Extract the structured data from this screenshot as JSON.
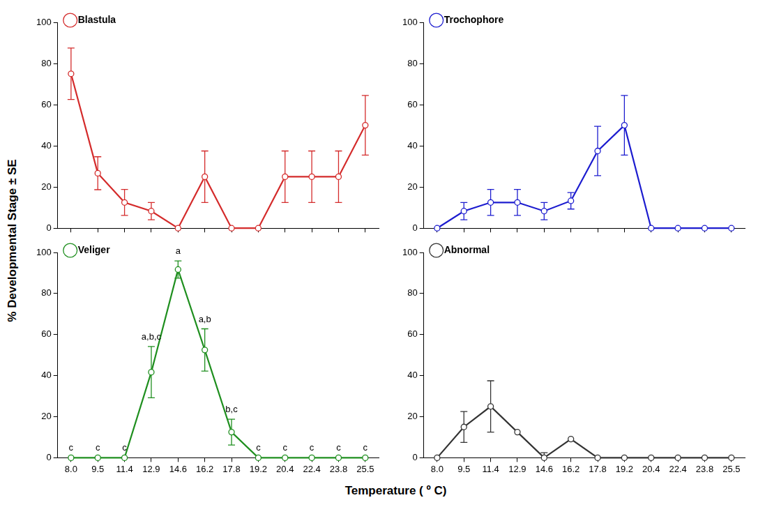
{
  "x_label": "Temperature ( º C)",
  "y_label": "% Developmental Stage ± SE",
  "chart_data": [
    {
      "type": "line",
      "categories": [
        "8.0",
        "9.5",
        "11.4",
        "12.9",
        "14.6",
        "16.2",
        "17.8",
        "19.2",
        "20.4",
        "22.4",
        "23.8",
        "25.5"
      ],
      "series": [
        {
          "name": "Blastula",
          "color": "#d42b2b",
          "marker": "circle",
          "values": [
            75,
            26.7,
            12.5,
            8.3,
            0,
            25,
            0,
            0,
            25,
            25,
            25,
            50
          ],
          "errors": [
            12.5,
            8,
            6.3,
            4.2,
            0,
            12.5,
            0,
            0,
            12.5,
            12.5,
            12.5,
            14.5
          ]
        }
      ],
      "ylim": [
        0,
        100
      ],
      "yticks": [
        0,
        20,
        40,
        60,
        80,
        100
      ],
      "grid": false,
      "legend": "upper left",
      "tick_labels": "y"
    },
    {
      "type": "line",
      "categories": [
        "8.0",
        "9.5",
        "11.4",
        "12.9",
        "14.6",
        "16.2",
        "17.8",
        "19.2",
        "20.4",
        "22.4",
        "23.8",
        "25.5"
      ],
      "series": [
        {
          "name": "Trochophore",
          "color": "#1c1ccf",
          "marker": "circle",
          "values": [
            0,
            8.3,
            12.5,
            12.5,
            8.3,
            13.3,
            37.5,
            50,
            0,
            0,
            0,
            0
          ],
          "errors": [
            0,
            4.2,
            6.3,
            6.3,
            4.2,
            4,
            12,
            14.5,
            0,
            0,
            0,
            0
          ]
        }
      ],
      "ylim": [
        0,
        100
      ],
      "yticks": [
        0,
        20,
        40,
        60,
        80,
        100
      ],
      "grid": false,
      "legend": "upper left",
      "tick_labels": "y"
    },
    {
      "type": "line",
      "categories": [
        "8.0",
        "9.5",
        "11.4",
        "12.9",
        "14.6",
        "16.2",
        "17.8",
        "19.2",
        "20.4",
        "22.4",
        "23.8",
        "25.5"
      ],
      "series": [
        {
          "name": "Veliger",
          "color": "#1f8f1f",
          "marker": "circle",
          "values": [
            0,
            0,
            0,
            41.7,
            91.7,
            52.5,
            12.5,
            0,
            0,
            0,
            0,
            0
          ],
          "errors": [
            0,
            0,
            0,
            12.5,
            4.2,
            10.3,
            6.3,
            0,
            0,
            0,
            0,
            0
          ],
          "annotations": [
            "c",
            "c",
            "c",
            "a,b,c",
            "a",
            "a,b",
            "b,c",
            "c",
            "c",
            "c",
            "c",
            "c"
          ]
        }
      ],
      "ylim": [
        0,
        100
      ],
      "yticks": [
        0,
        20,
        40,
        60,
        80,
        100
      ],
      "grid": false,
      "legend": "upper left",
      "tick_labels": true
    },
    {
      "type": "line",
      "categories": [
        "8.0",
        "9.5",
        "11.4",
        "12.9",
        "14.6",
        "16.2",
        "17.8",
        "19.2",
        "20.4",
        "22.4",
        "23.8",
        "25.5"
      ],
      "series": [
        {
          "name": "Abnormal",
          "color": "#333333",
          "marker": "circle",
          "values": [
            0,
            15,
            25,
            12.5,
            0,
            9.1,
            0,
            0,
            0,
            0,
            0,
            0
          ],
          "errors": [
            0,
            7.5,
            12.5,
            0,
            2.5,
            0,
            0,
            0,
            0,
            0,
            0,
            0
          ]
        }
      ],
      "ylim": [
        0,
        100
      ],
      "yticks": [
        0,
        20,
        40,
        60,
        80,
        100
      ],
      "grid": false,
      "legend": "upper left",
      "tick_labels": true
    }
  ]
}
